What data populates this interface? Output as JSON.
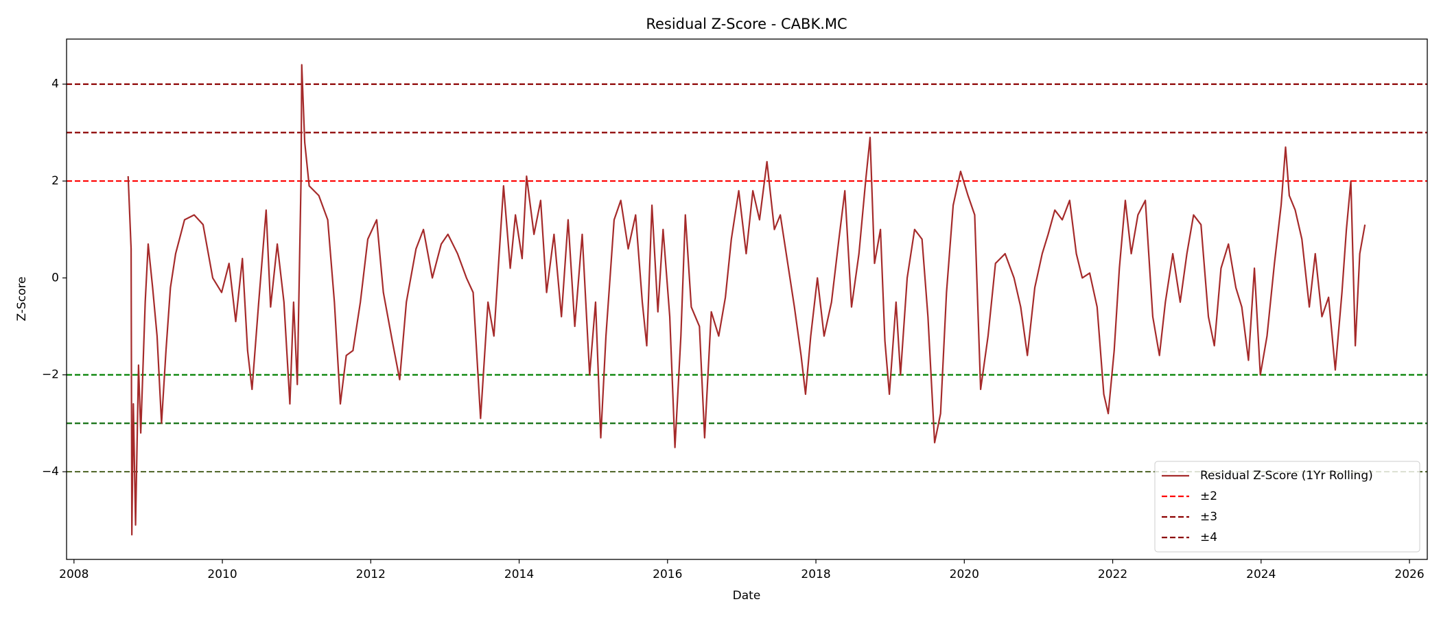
{
  "chart_data": {
    "type": "line",
    "title": "Residual Z-Score - CABK.MC",
    "x_label": "Date",
    "y_label": "Z-Score",
    "xlim": [
      2007.9,
      2026.24
    ],
    "xticks": [
      2008,
      2010,
      2012,
      2014,
      2016,
      2018,
      2020,
      2022,
      2024,
      2026
    ],
    "ylim": [
      -5.81,
      4.93
    ],
    "yticks": [
      {
        "value": -4,
        "label": "−4"
      },
      {
        "value": -2,
        "label": "−2"
      },
      0,
      2,
      4
    ],
    "legend": "lower right",
    "x": [
      2008.73,
      2008.77,
      2008.78,
      2008.8,
      2008.83,
      2008.87,
      2008.9,
      2008.96,
      2009.0,
      2009.06,
      2009.12,
      2009.18,
      2009.24,
      2009.3,
      2009.37,
      2009.49,
      2009.62,
      2009.74,
      2009.87,
      2009.99,
      2010.09,
      2010.18,
      2010.27,
      2010.34,
      2010.4,
      2010.49,
      2010.59,
      2010.65,
      2010.74,
      2010.83,
      2010.91,
      2010.96,
      2011.01,
      2011.06,
      2011.07,
      2011.11,
      2011.17,
      2011.3,
      2011.42,
      2011.51,
      2011.59,
      2011.67,
      2011.76,
      2011.86,
      2011.96,
      2012.08,
      2012.17,
      2012.29,
      2012.39,
      2012.48,
      2012.61,
      2012.71,
      2012.83,
      2012.95,
      2013.04,
      2013.17,
      2013.29,
      2013.38,
      2013.48,
      2013.58,
      2013.66,
      2013.79,
      2013.88,
      2013.95,
      2014.04,
      2014.1,
      2014.2,
      2014.29,
      2014.37,
      2014.47,
      2014.57,
      2014.66,
      2014.75,
      2014.85,
      2014.95,
      2015.03,
      2015.1,
      2015.17,
      2015.28,
      2015.37,
      2015.47,
      2015.57,
      2015.66,
      2015.72,
      2015.79,
      2015.87,
      2015.94,
      2016.03,
      2016.1,
      2016.18,
      2016.24,
      2016.32,
      2016.43,
      2016.5,
      2016.59,
      2016.69,
      2016.78,
      2016.86,
      2016.96,
      2017.06,
      2017.15,
      2017.24,
      2017.34,
      2017.44,
      2017.52,
      2017.61,
      2017.71,
      2017.8,
      2017.86,
      2017.93,
      2018.02,
      2018.11,
      2018.21,
      2018.31,
      2018.39,
      2018.48,
      2018.58,
      2018.67,
      2018.73,
      2018.79,
      2018.87,
      2018.93,
      2018.99,
      2019.08,
      2019.14,
      2019.23,
      2019.33,
      2019.43,
      2019.51,
      2019.6,
      2019.68,
      2019.76,
      2019.85,
      2019.95,
      2020.05,
      2020.14,
      2020.22,
      2020.32,
      2020.42,
      2020.55,
      2020.67,
      2020.76,
      2020.85,
      2020.95,
      2021.05,
      2021.13,
      2021.22,
      2021.32,
      2021.42,
      2021.51,
      2021.59,
      2021.69,
      2021.79,
      2021.88,
      2021.94,
      2022.02,
      2022.09,
      2022.17,
      2022.25,
      2022.34,
      2022.44,
      2022.54,
      2022.63,
      2022.71,
      2022.81,
      2022.91,
      2023.0,
      2023.09,
      2023.19,
      2023.29,
      2023.37,
      2023.46,
      2023.56,
      2023.66,
      2023.74,
      2023.83,
      2023.91,
      2023.99,
      2024.08,
      2024.18,
      2024.27,
      2024.33,
      2024.38,
      2024.46,
      2024.55,
      2024.65,
      2024.73,
      2024.82,
      2024.91,
      2025.0,
      2025.09,
      2025.15,
      2025.21,
      2025.27,
      2025.33,
      2025.4
    ],
    "series": [
      {
        "name": "Residual Z-Score (1Yr Rolling)",
        "color": "#a52a2a",
        "values": [
          2.1,
          0.6,
          -5.3,
          -2.6,
          -5.1,
          -1.8,
          -3.2,
          -0.5,
          0.7,
          -0.2,
          -1.2,
          -3.0,
          -1.5,
          -0.2,
          0.5,
          1.2,
          1.3,
          1.1,
          0.0,
          -0.3,
          0.3,
          -0.9,
          0.4,
          -1.5,
          -2.3,
          -0.5,
          1.4,
          -0.6,
          0.7,
          -0.5,
          -2.6,
          -0.5,
          -2.2,
          2.0,
          4.4,
          2.8,
          1.9,
          1.7,
          1.2,
          -0.5,
          -2.6,
          -1.6,
          -1.5,
          -0.5,
          0.8,
          1.2,
          -0.3,
          -1.3,
          -2.1,
          -0.5,
          0.6,
          1.0,
          0.0,
          0.7,
          0.9,
          0.5,
          0.0,
          -0.3,
          -2.9,
          -0.5,
          -1.2,
          1.9,
          0.2,
          1.3,
          0.4,
          2.1,
          0.9,
          1.6,
          -0.3,
          0.9,
          -0.8,
          1.2,
          -1.0,
          0.9,
          -2.0,
          -0.5,
          -3.3,
          -1.2,
          1.2,
          1.6,
          0.6,
          1.3,
          -0.5,
          -1.4,
          1.5,
          -0.7,
          1.0,
          -0.8,
          -3.5,
          -1.2,
          1.3,
          -0.6,
          -1.0,
          -3.3,
          -0.7,
          -1.2,
          -0.4,
          0.8,
          1.8,
          0.5,
          1.8,
          1.2,
          2.4,
          1.0,
          1.3,
          0.4,
          -0.6,
          -1.6,
          -2.4,
          -1.2,
          0.0,
          -1.2,
          -0.5,
          0.8,
          1.8,
          -0.6,
          0.5,
          2.0,
          2.9,
          0.3,
          1.0,
          -1.3,
          -2.4,
          -0.5,
          -2.0,
          0.0,
          1.0,
          0.8,
          -0.8,
          -3.4,
          -2.8,
          -0.3,
          1.5,
          2.2,
          1.7,
          1.3,
          -2.3,
          -1.2,
          0.3,
          0.5,
          0.0,
          -0.6,
          -1.6,
          -0.2,
          0.5,
          0.9,
          1.4,
          1.2,
          1.6,
          0.5,
          0.0,
          0.1,
          -0.6,
          -2.4,
          -2.8,
          -1.5,
          0.2,
          1.6,
          0.5,
          1.3,
          1.6,
          -0.8,
          -1.6,
          -0.5,
          0.5,
          -0.5,
          0.5,
          1.3,
          1.1,
          -0.8,
          -1.4,
          0.2,
          0.7,
          -0.2,
          -0.6,
          -1.7,
          0.2,
          -2.0,
          -1.2,
          0.3,
          1.5,
          2.7,
          1.7,
          1.4,
          0.8,
          -0.6,
          0.5,
          -0.8,
          -0.4,
          -1.9,
          -0.3,
          1.0,
          2.0,
          -1.4,
          0.5,
          1.1
        ]
      }
    ],
    "reference_lines": [
      {
        "name": "±2",
        "levels": [
          2,
          -2
        ],
        "colors": [
          "#ff0000",
          "#008000"
        ]
      },
      {
        "name": "±3",
        "levels": [
          3,
          -3
        ],
        "colors": [
          "#8b0000",
          "#006400"
        ]
      },
      {
        "name": "±4",
        "levels": [
          4,
          -4
        ],
        "colors": [
          "#8b0000",
          "#556b2f"
        ]
      }
    ]
  }
}
